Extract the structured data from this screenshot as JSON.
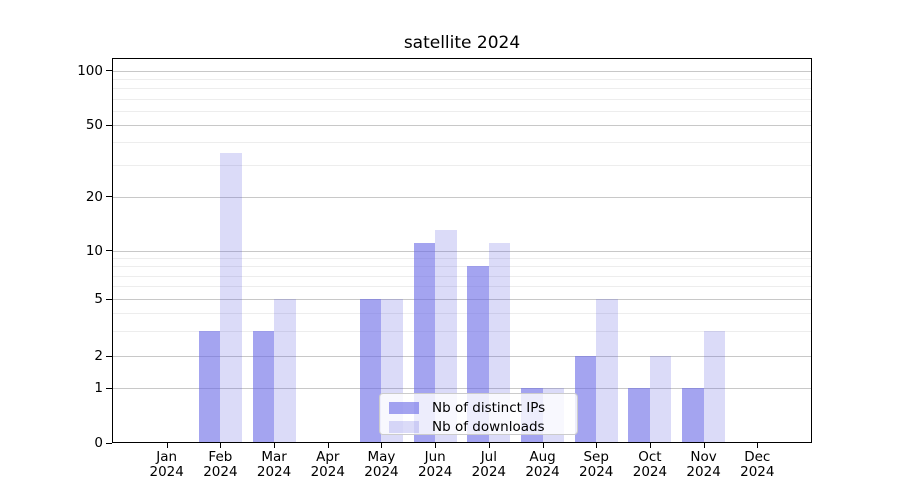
{
  "title": "satellite 2024",
  "chart_data": {
    "type": "bar",
    "title": "satellite 2024",
    "categories": [
      "Jan",
      "Feb",
      "Mar",
      "Apr",
      "May",
      "Jun",
      "Jul",
      "Aug",
      "Sep",
      "Oct",
      "Nov",
      "Dec"
    ],
    "category_year": "2024",
    "series": [
      {
        "name": "Nb of distinct IPs",
        "color": "#a4a4f0",
        "color_rgba": "rgba(103,103,230,0.6)",
        "values": [
          0,
          3,
          3,
          0,
          5,
          11,
          8,
          1,
          2,
          1,
          1,
          0
        ]
      },
      {
        "name": "Nb of downloads",
        "color": "#dbdbf8",
        "color_rgba": "rgba(75,75,220,0.2)",
        "values": [
          0,
          35,
          5,
          0,
          5,
          13,
          11,
          1,
          5,
          2,
          3,
          0
        ]
      }
    ],
    "yscale": "symlog",
    "ylim": [
      0,
      117
    ],
    "yticks": [
      0,
      1,
      2,
      5,
      10,
      20,
      50,
      100
    ],
    "yticks_minor": [
      3,
      4,
      6,
      7,
      8,
      9,
      30,
      40,
      60,
      70,
      80,
      90
    ],
    "xlabel": "",
    "ylabel": "",
    "grid": "horizontal",
    "legend": {
      "position": "lower center",
      "entries": [
        "Nb of distinct IPs",
        "Nb of downloads"
      ]
    }
  },
  "colors": {
    "background": "#ffffff",
    "text": "#000000",
    "spine": "#000000",
    "grid_major": "#c8c8c8",
    "grid_minor": "#ededed",
    "legend_border": "#cccccc",
    "legend_bg": "rgba(255,255,255,0.8)"
  }
}
